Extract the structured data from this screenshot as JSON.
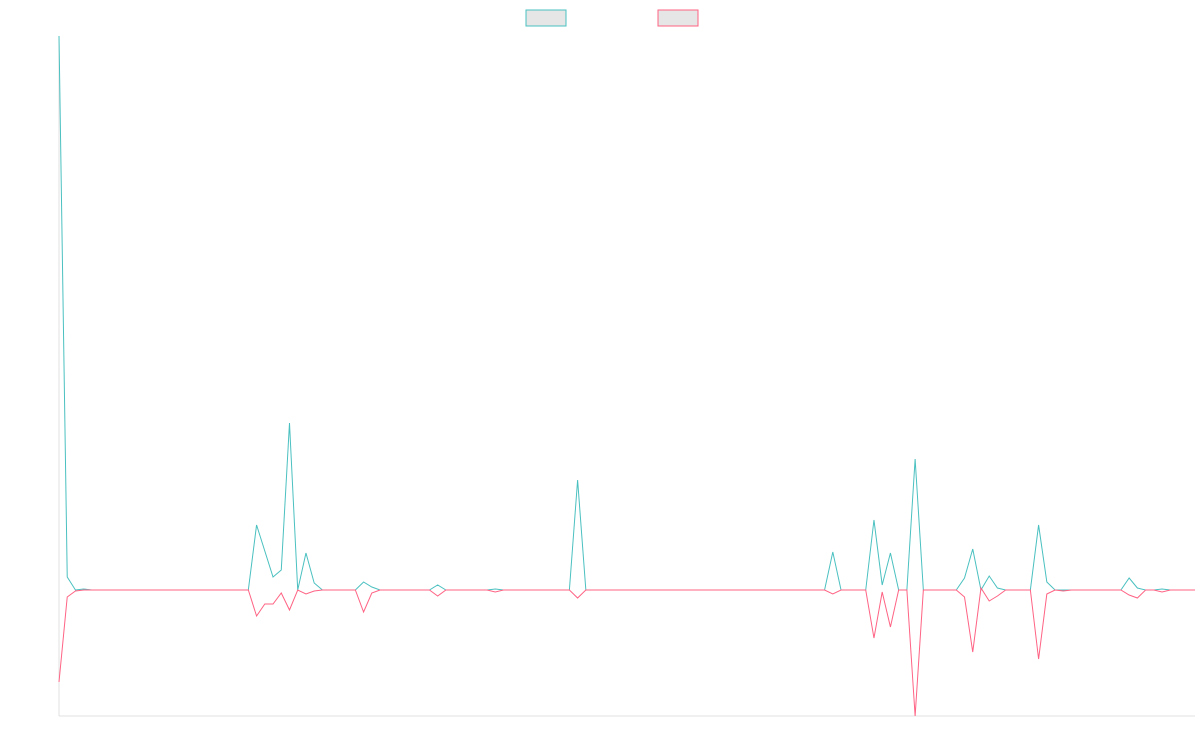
{
  "chart_data": {
    "type": "line",
    "legend": "top",
    "ylim": [
      -126,
      554
    ],
    "series": [
      {
        "color": "#4bc0c0",
        "values": [
          554,
          13,
          0,
          1,
          0,
          0,
          0,
          0,
          0,
          0,
          0,
          0,
          0,
          0,
          0,
          0,
          0,
          0,
          0,
          0,
          0,
          0,
          0,
          0,
          65,
          39,
          13,
          20,
          167,
          0,
          37,
          7,
          0,
          0,
          0,
          0,
          0,
          8,
          3,
          0,
          0,
          0,
          0,
          0,
          0,
          0,
          5,
          0,
          0,
          0,
          0,
          0,
          0,
          1,
          0,
          0,
          0,
          0,
          0,
          0,
          0,
          0,
          0,
          110,
          0,
          0,
          0,
          0,
          0,
          0,
          0,
          0,
          0,
          0,
          0,
          0,
          0,
          0,
          0,
          0,
          0,
          0,
          0,
          0,
          0,
          0,
          0,
          0,
          0,
          0,
          0,
          0,
          0,
          0,
          38,
          0,
          0,
          0,
          0,
          70,
          5,
          37,
          0,
          0,
          131,
          0,
          0,
          0,
          0,
          0,
          12,
          41,
          0,
          14,
          2,
          0,
          0,
          0,
          0,
          65,
          8,
          0,
          0,
          0,
          0,
          0,
          0,
          0,
          0,
          0,
          12,
          2,
          0,
          0,
          1,
          0,
          0,
          0,
          0
        ]
      },
      {
        "color": "#ff6384",
        "values": [
          -92,
          -7,
          -1,
          0,
          0,
          0,
          0,
          0,
          0,
          0,
          0,
          0,
          0,
          0,
          0,
          0,
          0,
          0,
          0,
          0,
          0,
          0,
          0,
          0,
          -26,
          -14,
          -14,
          -3,
          -20,
          0,
          -4,
          -1,
          0,
          0,
          0,
          0,
          0,
          -22,
          -3,
          0,
          0,
          0,
          0,
          0,
          0,
          0,
          -6,
          0,
          0,
          0,
          0,
          0,
          0,
          -2,
          0,
          0,
          0,
          0,
          0,
          0,
          0,
          0,
          0,
          -8,
          0,
          0,
          0,
          0,
          0,
          0,
          0,
          0,
          0,
          0,
          0,
          0,
          0,
          0,
          0,
          0,
          0,
          0,
          0,
          0,
          0,
          0,
          0,
          0,
          0,
          0,
          0,
          0,
          0,
          0,
          -4,
          0,
          0,
          0,
          0,
          -48,
          -2,
          -37,
          0,
          0,
          -126,
          0,
          0,
          0,
          0,
          0,
          -7,
          -62,
          2,
          -11,
          -6,
          0,
          0,
          0,
          0,
          -69,
          -4,
          0,
          -1,
          0,
          0,
          0,
          0,
          0,
          0,
          0,
          -5,
          -8,
          0,
          0,
          -2,
          0,
          0,
          0,
          0
        ]
      }
    ]
  }
}
